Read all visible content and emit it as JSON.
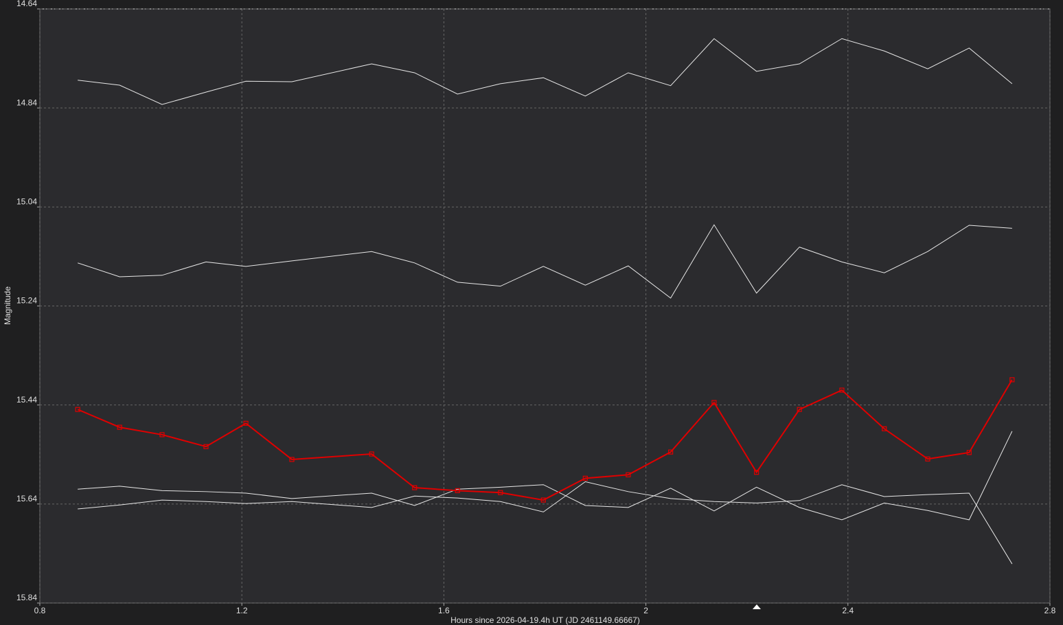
{
  "chart_data": {
    "type": "line",
    "x_label": "Hours since 2026-04-19.4h UT (JD 2461149.66667)",
    "y_label": "Magnitude",
    "xlim": [
      0.8,
      2.8
    ],
    "xticks": [
      0.8,
      1.2,
      1.6,
      2,
      2.4,
      2.8
    ],
    "ylim": [
      14.64,
      15.84
    ],
    "yticks": [
      14.64,
      14.84,
      15.04,
      15.24,
      15.44,
      15.64,
      15.84
    ],
    "y_inverted": true,
    "grid": true,
    "x": [
      0.875,
      0.958,
      1.042,
      1.129,
      1.208,
      1.299,
      1.457,
      1.542,
      1.627,
      1.712,
      1.797,
      1.88,
      1.965,
      2.049,
      2.135,
      2.219,
      2.304,
      2.388,
      2.472,
      2.558,
      2.64,
      2.725
    ],
    "series": [
      {
        "color": "#e8e8e8",
        "values": [
          14.784,
          14.794,
          14.833,
          14.808,
          14.786,
          14.787,
          14.751,
          14.769,
          14.812,
          14.791,
          14.779,
          14.816,
          14.769,
          14.795,
          14.7,
          14.766,
          14.751,
          14.7,
          14.725,
          14.761,
          14.719,
          14.791
        ]
      },
      {
        "color": "#e8e8e8",
        "values": [
          15.153,
          15.181,
          15.178,
          15.151,
          15.16,
          15.149,
          15.13,
          15.153,
          15.192,
          15.2,
          15.16,
          15.198,
          15.159,
          15.224,
          15.076,
          15.214,
          15.121,
          15.151,
          15.173,
          15.13,
          15.077,
          15.083
        ]
      },
      {
        "color": "#e8e8e8",
        "values": [
          15.61,
          15.604,
          15.613,
          15.615,
          15.618,
          15.629,
          15.618,
          15.643,
          15.61,
          15.606,
          15.601,
          15.643,
          15.647,
          15.608,
          15.654,
          15.606,
          15.647,
          15.672,
          15.638,
          15.653,
          15.672,
          15.493
        ]
      },
      {
        "color": "#e8e8e8",
        "values": [
          15.65,
          15.642,
          15.632,
          15.635,
          15.639,
          15.635,
          15.647,
          15.624,
          15.628,
          15.635,
          15.656,
          15.595,
          15.615,
          15.629,
          15.635,
          15.638,
          15.633,
          15.601,
          15.625,
          15.621,
          15.618,
          15.761
        ]
      },
      {
        "color": "#e00000",
        "marker": "square",
        "values": [
          15.449,
          15.485,
          15.5,
          15.524,
          15.477,
          15.55,
          15.539,
          15.607,
          15.613,
          15.617,
          15.632,
          15.588,
          15.581,
          15.535,
          15.435,
          15.576,
          15.449,
          15.41,
          15.488,
          15.549,
          15.536,
          15.389
        ]
      }
    ]
  }
}
